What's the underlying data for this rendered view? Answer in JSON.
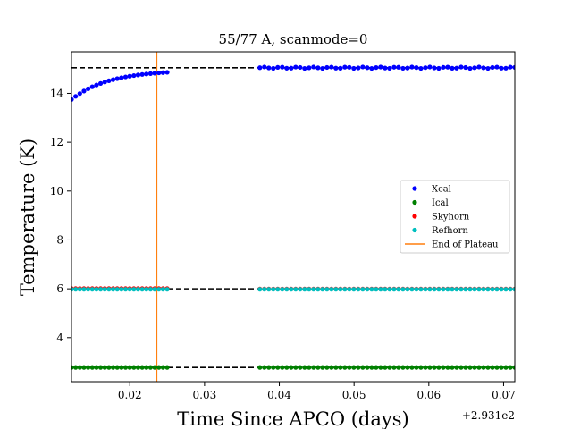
{
  "chart_data": {
    "type": "scatter",
    "title": "55/77 A, scanmode=0",
    "xlabel": "Time Since APCO (days)",
    "ylabel": "Temperature (K)",
    "x_offset_label": "+2.931e2",
    "xlim": [
      0.0122,
      0.0715
    ],
    "ylim": [
      2.2,
      15.7
    ],
    "x_ticks": [
      0.02,
      0.03,
      0.04,
      0.05,
      0.06,
      0.07
    ],
    "x_tick_labels": [
      "0.02",
      "0.03",
      "0.04",
      "0.05",
      "0.06",
      "0.07"
    ],
    "y_ticks": [
      4,
      6,
      8,
      10,
      12,
      14
    ],
    "y_tick_labels": [
      "4",
      "6",
      "8",
      "10",
      "12",
      "14"
    ],
    "grid": false,
    "legend_position": "center-right",
    "colors": {
      "xcal": "#0000ff",
      "ical": "#008000",
      "skyhorn": "#ff0000",
      "refhorn": "#00bfbf",
      "plateau": "#ff7f0e",
      "reference": "#000000"
    },
    "series": [
      {
        "name": "Xcal",
        "segments": [
          {
            "x_start": 0.0122,
            "x_end": 0.025,
            "count": 24,
            "model": "exp_rise",
            "y_start": 13.75,
            "y_end": 14.86
          },
          {
            "x_start": 0.0374,
            "x_end": 0.0715,
            "count": 58,
            "model": "flat",
            "y": 15.05
          }
        ]
      },
      {
        "name": "Ical",
        "segments": [
          {
            "x_start": 0.0122,
            "x_end": 0.025,
            "count": 24,
            "model": "flat",
            "y": 2.78
          },
          {
            "x_start": 0.0374,
            "x_end": 0.0715,
            "count": 58,
            "model": "flat",
            "y": 2.78
          }
        ]
      },
      {
        "name": "Skyhorn",
        "segments": [
          {
            "x_start": 0.0122,
            "x_end": 0.025,
            "count": 24,
            "model": "flat",
            "y": 6.01
          },
          {
            "x_start": 0.0374,
            "x_end": 0.0715,
            "count": 58,
            "model": "flat",
            "y": 5.99
          }
        ]
      },
      {
        "name": "Refhorn",
        "segments": [
          {
            "x_start": 0.0122,
            "x_end": 0.025,
            "count": 24,
            "model": "flat",
            "y": 5.98
          },
          {
            "x_start": 0.0374,
            "x_end": 0.0715,
            "count": 58,
            "model": "flat",
            "y": 5.98
          }
        ]
      }
    ],
    "reference_lines": [
      {
        "y": 15.05,
        "style": "dashed"
      },
      {
        "y": 6.0,
        "style": "dashed"
      },
      {
        "y": 2.78,
        "style": "dashed"
      }
    ],
    "vertical_line": {
      "name": "End of Plateau",
      "x": 0.0236
    }
  }
}
